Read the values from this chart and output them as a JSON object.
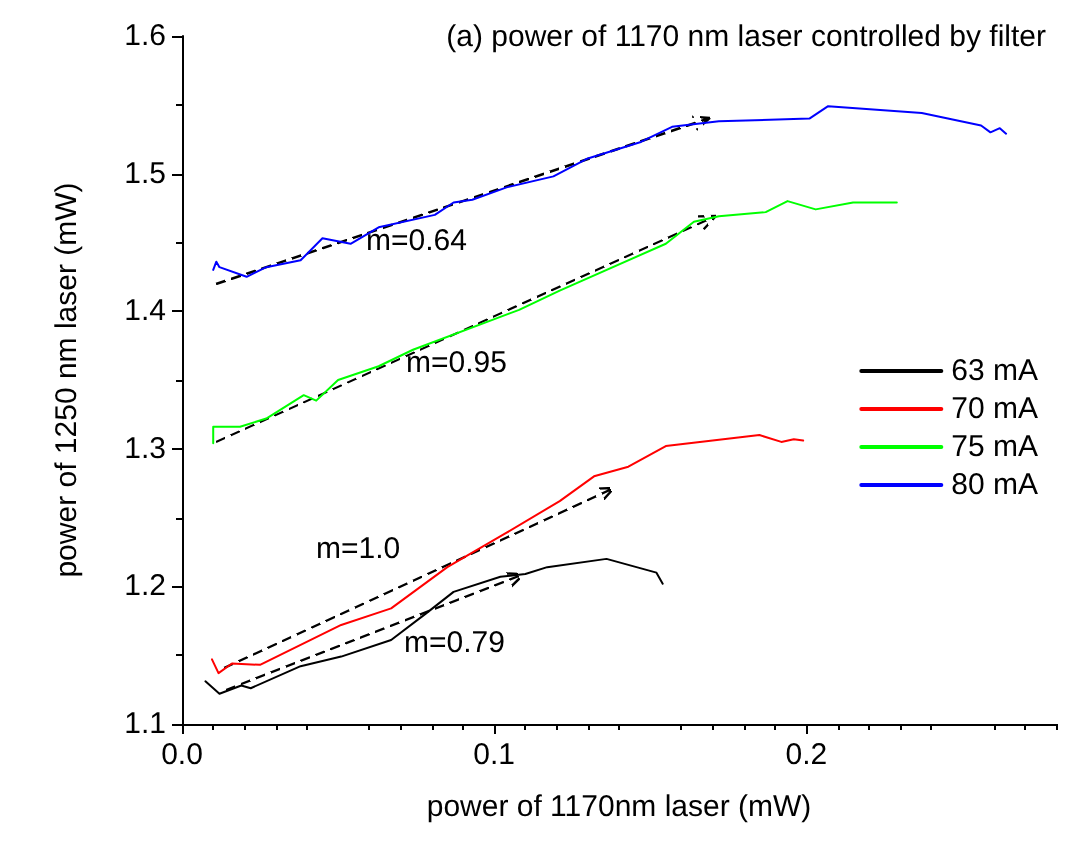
{
  "chart_data": {
    "type": "line",
    "title": "(a) power of 1170 nm laser controlled by filter",
    "xlabel": "power of 1170nm laser (mW)",
    "ylabel": "power of 1250 nm laser (mW)",
    "xlim": [
      0,
      0.28
    ],
    "xticks": [
      {
        "value": 0,
        "label": "0.0"
      },
      0.1,
      0.2
    ],
    "ylim": [
      1.1,
      1.6
    ],
    "yticks": [
      1.1,
      1.2,
      1.3,
      1.4,
      1.5,
      1.6
    ],
    "grid": false,
    "legend": "right",
    "marker": "none",
    "line_style": "solid",
    "series": [
      {
        "name": "63 mA",
        "color": "#000000",
        "x": [
          0.0075,
          0.012,
          0.019,
          0.022,
          0.038,
          0.051,
          0.067,
          0.078,
          0.087,
          0.102,
          0.11,
          0.117,
          0.136,
          0.152,
          0.154
        ],
        "values": [
          1.131,
          1.122,
          1.128,
          1.126,
          1.142,
          1.149,
          1.161,
          1.18,
          1.196,
          1.207,
          1.209,
          1.214,
          1.22,
          1.21,
          1.202
        ]
      },
      {
        "name": "70 mA",
        "color": "#ff0000",
        "x": [
          0.0096,
          0.0117,
          0.016,
          0.025,
          0.051,
          0.067,
          0.085,
          0.104,
          0.121,
          0.132,
          0.143,
          0.155,
          0.17,
          0.185,
          0.192,
          0.196,
          0.199
        ],
        "values": [
          1.147,
          1.137,
          1.144,
          1.143,
          1.172,
          1.184,
          1.214,
          1.239,
          1.262,
          1.28,
          1.287,
          1.302,
          1.306,
          1.31,
          1.305,
          1.307,
          1.306
        ]
      },
      {
        "name": "75 mA",
        "color": "#00ff00",
        "x": [
          0.01,
          0.01,
          0.012,
          0.0186,
          0.027,
          0.039,
          0.043,
          0.05,
          0.063,
          0.074,
          0.108,
          0.121,
          0.155,
          0.164,
          0.172,
          0.187,
          0.194,
          0.203,
          0.215,
          0.229
        ],
        "values": [
          1.304,
          1.316,
          1.316,
          1.316,
          1.322,
          1.339,
          1.335,
          1.35,
          1.36,
          1.372,
          1.401,
          1.415,
          1.449,
          1.465,
          1.469,
          1.472,
          1.48,
          1.474,
          1.479,
          1.479
        ]
      },
      {
        "name": "80 mA",
        "color": "#0000ff",
        "x": [
          0.01,
          0.011,
          0.012,
          0.0207,
          0.027,
          0.038,
          0.045,
          0.054,
          0.063,
          0.081,
          0.087,
          0.093,
          0.104,
          0.119,
          0.13,
          0.147,
          0.157,
          0.172,
          0.201,
          0.207,
          0.237,
          0.256,
          0.259,
          0.262,
          0.264
        ],
        "values": [
          1.43,
          1.436,
          1.432,
          1.425,
          1.432,
          1.437,
          1.453,
          1.449,
          1.461,
          1.47,
          1.479,
          1.481,
          1.49,
          1.498,
          1.511,
          1.523,
          1.534,
          1.538,
          1.54,
          1.549,
          1.544,
          1.535,
          1.53,
          1.533,
          1.529
        ]
      }
    ],
    "annotations": [
      "m=0.64",
      "m=0.95",
      "m=1.0",
      "m=0.79"
    ]
  }
}
